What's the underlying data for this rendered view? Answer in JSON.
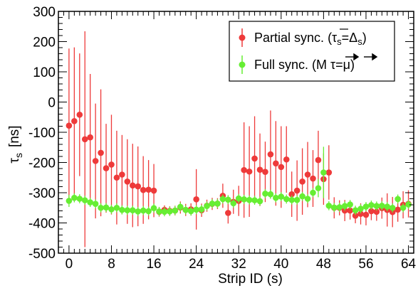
{
  "chart_data": {
    "type": "scatter",
    "xlabel": "Strip ID (s)",
    "ylabel_main": "τ",
    "ylabel_sub": "s",
    "ylabel_unit": "[ns]",
    "xlim": [
      -2,
      65
    ],
    "ylim": [
      -500,
      300
    ],
    "x_ticks": [
      0,
      8,
      16,
      24,
      32,
      40,
      48,
      56,
      64
    ],
    "y_ticks": [
      -500,
      -400,
      -300,
      -200,
      -100,
      0,
      100,
      200,
      300
    ],
    "grid": false,
    "legend_position": "top-right",
    "series": [
      {
        "name": "Partial sync.",
        "legend_math": "(τ_s = Δ̄_s)",
        "color": "#ee3a3a",
        "x": [
          0,
          1,
          2,
          3,
          4,
          5,
          6,
          7,
          8,
          9,
          10,
          11,
          12,
          13,
          14,
          15,
          16,
          17,
          18,
          19,
          20,
          21,
          22,
          23,
          24,
          25,
          26,
          27,
          28,
          29,
          30,
          31,
          32,
          33,
          34,
          35,
          36,
          37,
          38,
          39,
          40,
          41,
          42,
          43,
          44,
          45,
          46,
          47,
          48,
          49,
          50,
          51,
          52,
          53,
          54,
          55,
          56,
          57,
          58,
          59,
          60,
          61,
          62,
          63,
          64
        ],
        "y": [
          -78,
          -63,
          -42,
          -123,
          -117,
          -195,
          -168,
          -219,
          -207,
          -250,
          -240,
          -263,
          -276,
          -279,
          -291,
          -290,
          -293,
          -363,
          -357,
          -360,
          -359,
          -349,
          -357,
          -355,
          -322,
          -358,
          -343,
          -337,
          -336,
          -310,
          -367,
          -330,
          -327,
          -225,
          -230,
          -187,
          -224,
          -231,
          -173,
          -203,
          -215,
          -190,
          -305,
          -293,
          -263,
          -240,
          -253,
          -192,
          -255,
          -233,
          -350,
          -350,
          -359,
          -359,
          -376,
          -370,
          -373,
          -361,
          -363,
          -351,
          -357,
          -364,
          -356,
          -340,
          -337
        ],
        "err": [
          255,
          244,
          203,
          357,
          210,
          190,
          210,
          147,
          165,
          155,
          131,
          140,
          138,
          132,
          112,
          98,
          88,
          16,
          15,
          15,
          16,
          20,
          20,
          20,
          100,
          22,
          20,
          20,
          18,
          40,
          35,
          40,
          50,
          158,
          150,
          140,
          120,
          100,
          145,
          140,
          135,
          110,
          75,
          100,
          110,
          108,
          94,
          97,
          85,
          90,
          35,
          25,
          35,
          30,
          25,
          35,
          35,
          30,
          30,
          35,
          55,
          50,
          40,
          45,
          45
        ]
      },
      {
        "name": "Full sync.",
        "legend_math": "(M τ⃗ = μ⃗)",
        "color": "#66ee33",
        "x": [
          0,
          1,
          2,
          3,
          4,
          5,
          6,
          7,
          8,
          9,
          10,
          11,
          12,
          13,
          14,
          15,
          16,
          17,
          18,
          19,
          20,
          21,
          22,
          23,
          24,
          25,
          26,
          27,
          28,
          29,
          30,
          31,
          32,
          33,
          34,
          35,
          36,
          37,
          38,
          39,
          40,
          41,
          42,
          43,
          44,
          45,
          46,
          47,
          48,
          49,
          50,
          51,
          52,
          53,
          54,
          55,
          56,
          57,
          58,
          59,
          60,
          61,
          62,
          63,
          64
        ],
        "y": [
          -327,
          -317,
          -320,
          -325,
          -332,
          -337,
          -350,
          -349,
          -355,
          -350,
          -357,
          -358,
          -358,
          -362,
          -359,
          -361,
          -351,
          -362,
          -363,
          -362,
          -359,
          -347,
          -357,
          -361,
          -356,
          -355,
          -344,
          -336,
          -336,
          -321,
          -323,
          -335,
          -319,
          -322,
          -324,
          -325,
          -328,
          -303,
          -305,
          -317,
          -313,
          -321,
          -324,
          -324,
          -312,
          -320,
          -300,
          -285,
          -233,
          -343,
          -349,
          -348,
          -344,
          -339,
          -358,
          -353,
          -346,
          -341,
          -344,
          -343,
          -346,
          -350,
          -321,
          -350,
          -339
        ],
        "err": [
          20,
          15,
          15,
          15,
          15,
          15,
          15,
          15,
          15,
          15,
          15,
          15,
          15,
          15,
          15,
          15,
          15,
          15,
          15,
          15,
          15,
          15,
          15,
          15,
          15,
          15,
          15,
          15,
          15,
          15,
          15,
          15,
          15,
          15,
          15,
          15,
          15,
          15,
          15,
          15,
          15,
          15,
          15,
          15,
          15,
          15,
          15,
          30,
          85,
          15,
          15,
          15,
          15,
          15,
          15,
          15,
          15,
          15,
          15,
          15,
          15,
          15,
          15,
          15,
          15
        ]
      }
    ]
  }
}
